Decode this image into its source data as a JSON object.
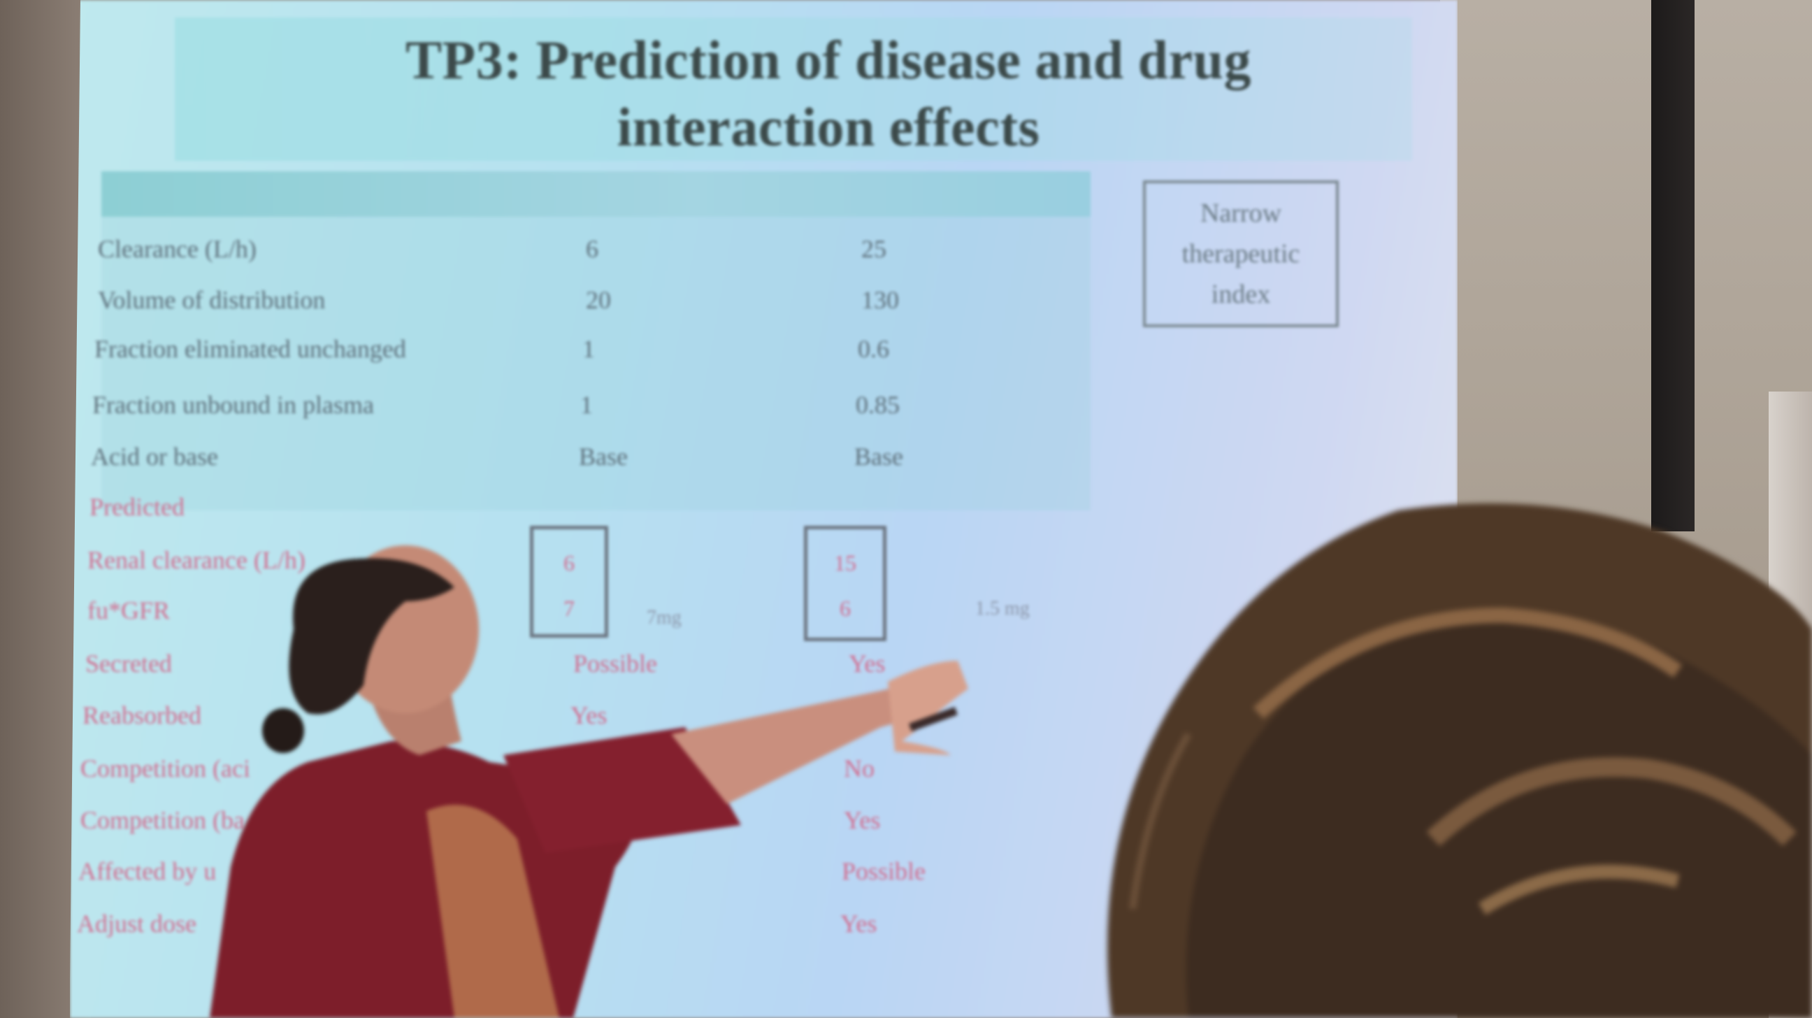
{
  "slide": {
    "title_line1": "TP3: Prediction of disease and drug",
    "title_line2": "interaction effects",
    "narrow_box": "Narrow\ntherapeutic\nindex",
    "rows": [
      {
        "label": "Clearance (L/h)",
        "a": "6",
        "b": "25",
        "style": "dark"
      },
      {
        "label": "Volume of distribution",
        "a": "20",
        "b": "130",
        "style": "dark"
      },
      {
        "label": "Fraction eliminated unchanged",
        "a": "1",
        "b": "0.6",
        "style": "dark"
      },
      {
        "label": "Fraction unbound in plasma",
        "a": "1",
        "b": "0.85",
        "style": "dark"
      },
      {
        "label": "Acid or base",
        "a": "Base",
        "b": "Base",
        "style": "dark"
      },
      {
        "label": "Predicted",
        "a": "",
        "b": "",
        "style": "red"
      },
      {
        "label": "Renal clearance (L/h)",
        "a": "",
        "b": "",
        "style": "red"
      },
      {
        "label": "fu*GFR",
        "a": "",
        "b": "",
        "style": "red"
      },
      {
        "label": "Secreted",
        "a": "Possible",
        "b": "Yes",
        "style": "red"
      },
      {
        "label": "Reabsorbed",
        "a": "Yes",
        "b": "",
        "style": "red"
      },
      {
        "label": "Competition (aci",
        "a": "",
        "b": "No",
        "style": "red"
      },
      {
        "label": "Competition (ba",
        "a": "",
        "b": "Yes",
        "style": "red"
      },
      {
        "label": "Affected by u",
        "a": "",
        "b": "Possible",
        "style": "red"
      },
      {
        "label": "Adjust dose",
        "a": "",
        "b": "Yes",
        "style": "red"
      }
    ],
    "box_a": {
      "v1": "6",
      "v2": "7"
    },
    "box_b": {
      "v1": "15",
      "v2": "6"
    },
    "note_a": "7mg",
    "note_b": "1.5 mg"
  },
  "colors": {
    "slide_bg": "#b9e0f0",
    "title_text": "#3c4a4a",
    "table_text": "#5d6f7a",
    "predicted_text": "#d26d8f",
    "presenter_cardigan": "#7d1e2a",
    "hair_dark": "#2a1f1c",
    "hair_light": "#7a5a3e"
  }
}
